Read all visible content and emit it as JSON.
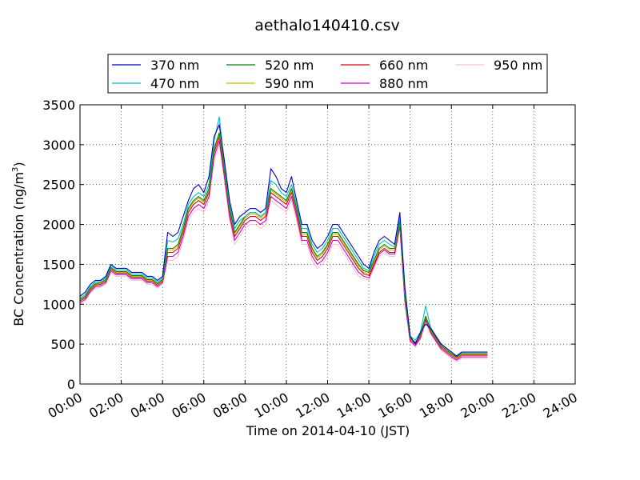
{
  "chart_data": {
    "type": "line",
    "title": "aethalo140410.csv",
    "xlabel": "Time on 2014-04-10 (JST)",
    "ylabel": "BC Concentration (ng/m",
    "ylabel_sup": "3",
    "ylabel_end": ")",
    "xlim": [
      "00:00",
      "24:00"
    ],
    "ylim": [
      0,
      3500
    ],
    "xticks": [
      "00:00",
      "02:00",
      "04:00",
      "06:00",
      "08:00",
      "10:00",
      "12:00",
      "14:00",
      "16:00",
      "18:00",
      "20:00",
      "22:00",
      "24:00"
    ],
    "yticks": [
      "0",
      "500",
      "1000",
      "1500",
      "2000",
      "2500",
      "3000",
      "3500"
    ],
    "grid": true,
    "legend_position": "top-center above plot",
    "x": [
      "00:00",
      "00:15",
      "00:30",
      "00:45",
      "01:00",
      "01:15",
      "01:30",
      "01:45",
      "02:00",
      "02:15",
      "02:30",
      "02:45",
      "03:00",
      "03:15",
      "03:30",
      "03:45",
      "04:00",
      "04:15",
      "04:30",
      "04:45",
      "05:00",
      "05:15",
      "05:30",
      "05:45",
      "06:00",
      "06:15",
      "06:30",
      "06:45",
      "07:00",
      "07:15",
      "07:30",
      "07:45",
      "08:00",
      "08:15",
      "08:30",
      "08:45",
      "09:00",
      "09:15",
      "09:30",
      "09:45",
      "10:00",
      "10:15",
      "10:30",
      "10:45",
      "11:00",
      "11:15",
      "11:30",
      "11:45",
      "12:00",
      "12:15",
      "12:30",
      "12:45",
      "13:00",
      "13:15",
      "13:30",
      "13:45",
      "14:00",
      "14:15",
      "14:30",
      "14:45",
      "15:00",
      "15:15",
      "15:30",
      "15:45",
      "16:00",
      "16:15",
      "16:30",
      "16:45",
      "17:00",
      "17:15",
      "17:30",
      "17:45",
      "18:00",
      "18:15",
      "18:30",
      "18:45",
      "19:00",
      "19:15",
      "19:30",
      "19:45"
    ],
    "series": [
      {
        "name": "370 nm",
        "color": "#0000cc",
        "values": [
          1100,
          1150,
          1250,
          1300,
          1300,
          1350,
          1500,
          1450,
          1450,
          1450,
          1400,
          1400,
          1400,
          1350,
          1350,
          1300,
          1350,
          1900,
          1850,
          1900,
          2100,
          2300,
          2450,
          2500,
          2400,
          2600,
          3100,
          3250,
          2800,
          2300,
          2000,
          2100,
          2150,
          2200,
          2200,
          2150,
          2200,
          2700,
          2600,
          2450,
          2400,
          2600,
          2300,
          2000,
          2000,
          1800,
          1700,
          1750,
          1850,
          2000,
          2000,
          1900,
          1800,
          1700,
          1600,
          1500,
          1450,
          1650,
          1800,
          1850,
          1800,
          1750,
          2150,
          1200,
          600,
          500,
          650,
          750,
          700,
          600,
          500,
          450,
          400,
          350,
          400,
          400,
          400,
          400,
          400,
          400
        ]
      },
      {
        "name": "470 nm",
        "color": "#00bfbf",
        "values": [
          1080,
          1120,
          1220,
          1280,
          1290,
          1330,
          1480,
          1430,
          1430,
          1430,
          1380,
          1380,
          1380,
          1330,
          1330,
          1280,
          1330,
          1800,
          1780,
          1820,
          2000,
          2250,
          2350,
          2400,
          2350,
          2500,
          3050,
          3350,
          2750,
          2250,
          1950,
          2050,
          2100,
          2150,
          2150,
          2100,
          2150,
          2550,
          2500,
          2400,
          2350,
          2500,
          2250,
          1950,
          1950,
          1750,
          1650,
          1700,
          1800,
          1950,
          1950,
          1850,
          1750,
          1650,
          1550,
          1450,
          1420,
          1600,
          1750,
          1800,
          1750,
          1720,
          2100,
          1150,
          600,
          550,
          650,
          980,
          700,
          600,
          500,
          450,
          400,
          350,
          400,
          400,
          400,
          400,
          400,
          400
        ]
      },
      {
        "name": "520 nm",
        "color": "#008000",
        "values": [
          1060,
          1100,
          1200,
          1260,
          1270,
          1310,
          1460,
          1410,
          1410,
          1410,
          1360,
          1360,
          1360,
          1310,
          1310,
          1260,
          1310,
          1700,
          1700,
          1750,
          1950,
          2200,
          2300,
          2350,
          2300,
          2450,
          2950,
          3150,
          2700,
          2200,
          1900,
          2000,
          2100,
          2150,
          2150,
          2100,
          2150,
          2450,
          2400,
          2350,
          2300,
          2450,
          2200,
          1900,
          1900,
          1700,
          1600,
          1650,
          1750,
          1900,
          1900,
          1800,
          1700,
          1600,
          1500,
          1420,
          1400,
          1550,
          1700,
          1750,
          1700,
          1700,
          2050,
          1100,
          580,
          520,
          620,
          850,
          680,
          580,
          480,
          430,
          380,
          340,
          380,
          380,
          380,
          380,
          380,
          380
        ]
      },
      {
        "name": "590 nm",
        "color": "#bfbf00",
        "values": [
          1050,
          1090,
          1190,
          1250,
          1260,
          1300,
          1450,
          1400,
          1400,
          1400,
          1350,
          1350,
          1350,
          1300,
          1300,
          1250,
          1300,
          1680,
          1680,
          1730,
          1930,
          2180,
          2280,
          2330,
          2280,
          2430,
          2930,
          3130,
          2680,
          2180,
          1880,
          1980,
          2080,
          2130,
          2130,
          2080,
          2130,
          2430,
          2380,
          2330,
          2280,
          2430,
          2180,
          1880,
          1880,
          1680,
          1580,
          1630,
          1730,
          1880,
          1880,
          1780,
          1680,
          1580,
          1480,
          1400,
          1380,
          1530,
          1680,
          1730,
          1680,
          1680,
          2030,
          1080,
          570,
          510,
          610,
          840,
          670,
          570,
          470,
          420,
          370,
          330,
          370,
          370,
          370,
          370,
          370,
          370
        ]
      },
      {
        "name": "660 nm",
        "color": "#dd0000",
        "values": [
          1040,
          1080,
          1180,
          1240,
          1250,
          1290,
          1440,
          1390,
          1390,
          1390,
          1340,
          1340,
          1340,
          1290,
          1290,
          1240,
          1290,
          1650,
          1650,
          1700,
          1900,
          2150,
          2250,
          2300,
          2250,
          2400,
          2900,
          3100,
          2650,
          2150,
          1850,
          1950,
          2050,
          2100,
          2100,
          2050,
          2100,
          2400,
          2350,
          2300,
          2250,
          2400,
          2150,
          1850,
          1850,
          1650,
          1550,
          1600,
          1700,
          1850,
          1850,
          1750,
          1650,
          1550,
          1450,
          1380,
          1360,
          1500,
          1650,
          1700,
          1650,
          1650,
          2000,
          1050,
          560,
          500,
          600,
          820,
          660,
          560,
          460,
          410,
          360,
          320,
          360,
          360,
          360,
          360,
          360,
          360
        ]
      },
      {
        "name": "880 nm",
        "color": "#cc00cc",
        "values": [
          1020,
          1060,
          1160,
          1220,
          1230,
          1270,
          1420,
          1370,
          1370,
          1370,
          1320,
          1320,
          1320,
          1270,
          1270,
          1220,
          1270,
          1600,
          1600,
          1650,
          1850,
          2100,
          2200,
          2250,
          2200,
          2350,
          2850,
          3050,
          2600,
          2100,
          1800,
          1900,
          2000,
          2050,
          2050,
          2000,
          2050,
          2350,
          2300,
          2250,
          2200,
          2350,
          2100,
          1800,
          1800,
          1600,
          1500,
          1550,
          1650,
          1800,
          1800,
          1700,
          1600,
          1500,
          1400,
          1350,
          1330,
          1480,
          1630,
          1680,
          1630,
          1630,
          1980,
          1030,
          540,
          480,
          580,
          800,
          640,
          540,
          440,
          390,
          340,
          300,
          340,
          340,
          340,
          340,
          340,
          340
        ]
      },
      {
        "name": "950 nm",
        "color": "#ffbfcb",
        "values": [
          1000,
          1040,
          1140,
          1200,
          1210,
          1250,
          1400,
          1350,
          1350,
          1350,
          1300,
          1300,
          1300,
          1250,
          1250,
          1200,
          1250,
          1550,
          1550,
          1600,
          1800,
          2050,
          2150,
          2200,
          2150,
          2300,
          2800,
          3000,
          2550,
          2050,
          1750,
          1850,
          1950,
          2000,
          2000,
          1950,
          2000,
          2300,
          2250,
          2200,
          2150,
          2300,
          2050,
          1750,
          1750,
          1550,
          1450,
          1500,
          1600,
          1750,
          1750,
          1650,
          1550,
          1450,
          1350,
          1320,
          1300,
          1450,
          1600,
          1650,
          1600,
          1600,
          1950,
          1000,
          520,
          460,
          560,
          780,
          620,
          520,
          420,
          370,
          320,
          280,
          320,
          320,
          320,
          320,
          320,
          320
        ]
      }
    ]
  }
}
